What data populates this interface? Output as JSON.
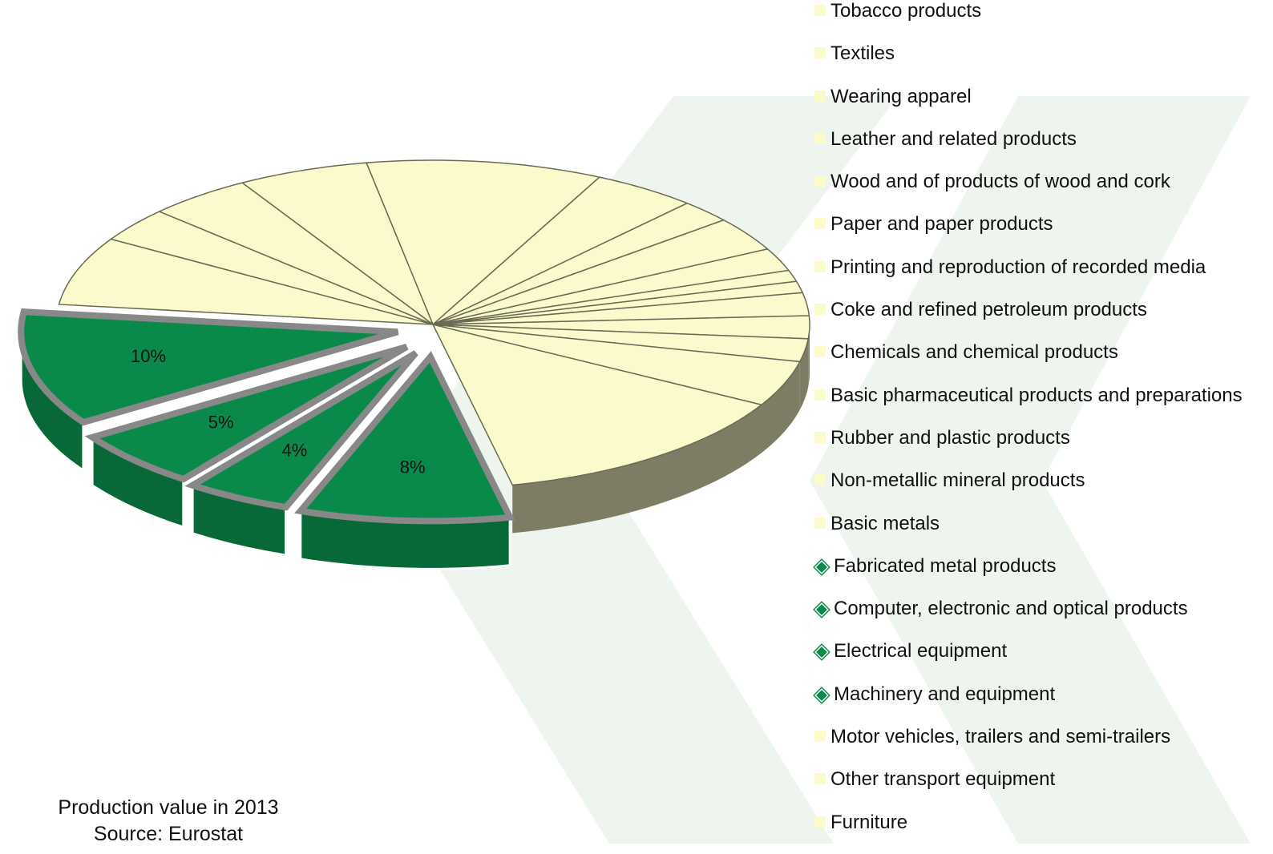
{
  "chart_data": {
    "type": "pie",
    "subtitle": "Production value in 2013",
    "source": "Source: Eurostat",
    "categories": [
      "Tobacco products",
      "Textiles",
      "Wearing apparel",
      "Leather and related products",
      "Wood and of products of wood and cork",
      "Paper and paper products",
      "Printing and reproduction of recorded media",
      "Coke and refined petroleum products",
      "Chemicals and chemical products",
      "Basic pharmaceutical products and preparations",
      "Rubber and plastic products",
      "Non-metallic mineral products",
      "Basic metals",
      "Fabricated metal products",
      "Computer, electronic and optical products",
      "Electrical equipment",
      "Machinery and equipment",
      "Motor vehicles, trailers and semi-trailers",
      "Other transport equipment",
      "Furniture"
    ],
    "values": [
      2,
      2,
      1,
      1,
      2,
      3,
      2,
      4,
      9,
      5,
      4,
      3,
      6,
      10,
      5,
      4,
      8,
      12,
      4,
      2
    ],
    "value_labels": [
      null,
      null,
      null,
      null,
      null,
      null,
      null,
      null,
      null,
      null,
      null,
      null,
      null,
      "10%",
      "5%",
      "4%",
      "8%",
      null,
      null,
      null
    ],
    "colors": [
      "#fafacc",
      "#fafacc",
      "#fafacc",
      "#fafacc",
      "#fafacc",
      "#fafacc",
      "#fafacc",
      "#fafacc",
      "#fafacc",
      "#fafacc",
      "#fafacc",
      "#fafacc",
      "#fafacc",
      "#0a8a4a",
      "#0a8a4a",
      "#0a8a4a",
      "#0a8a4a",
      "#fafacc",
      "#fafacc",
      "#fafacc"
    ]
  }
}
